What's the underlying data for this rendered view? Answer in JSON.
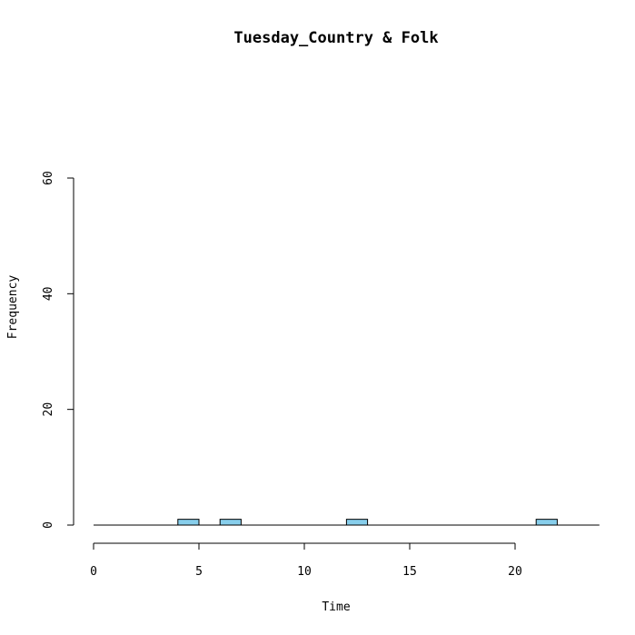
{
  "chart_data": {
    "type": "bar",
    "title": "Tuesday_Country & Folk",
    "xlabel": "Time",
    "ylabel": "Frequency",
    "xlim": [
      0,
      24
    ],
    "ylim": [
      0,
      60
    ],
    "x_ticks": [
      0,
      5,
      10,
      15,
      20
    ],
    "y_ticks": [
      0,
      20,
      40,
      60
    ],
    "bin_width": 1,
    "bins": [
      {
        "start": 0,
        "end": 1,
        "count": 0
      },
      {
        "start": 1,
        "end": 2,
        "count": 0
      },
      {
        "start": 2,
        "end": 3,
        "count": 0
      },
      {
        "start": 3,
        "end": 4,
        "count": 0
      },
      {
        "start": 4,
        "end": 5,
        "count": 1
      },
      {
        "start": 5,
        "end": 6,
        "count": 0
      },
      {
        "start": 6,
        "end": 7,
        "count": 1
      },
      {
        "start": 7,
        "end": 8,
        "count": 0
      },
      {
        "start": 8,
        "end": 9,
        "count": 0
      },
      {
        "start": 9,
        "end": 10,
        "count": 0
      },
      {
        "start": 10,
        "end": 11,
        "count": 0
      },
      {
        "start": 11,
        "end": 12,
        "count": 0
      },
      {
        "start": 12,
        "end": 13,
        "count": 1
      },
      {
        "start": 13,
        "end": 14,
        "count": 0
      },
      {
        "start": 14,
        "end": 15,
        "count": 0
      },
      {
        "start": 15,
        "end": 16,
        "count": 0
      },
      {
        "start": 16,
        "end": 17,
        "count": 0
      },
      {
        "start": 17,
        "end": 18,
        "count": 0
      },
      {
        "start": 18,
        "end": 19,
        "count": 0
      },
      {
        "start": 19,
        "end": 20,
        "count": 0
      },
      {
        "start": 20,
        "end": 21,
        "count": 0
      },
      {
        "start": 21,
        "end": 22,
        "count": 1
      },
      {
        "start": 22,
        "end": 23,
        "count": 0
      },
      {
        "start": 23,
        "end": 24,
        "count": 0
      }
    ],
    "bar_color": "#87ceeb",
    "grid": false,
    "legend": "none"
  }
}
